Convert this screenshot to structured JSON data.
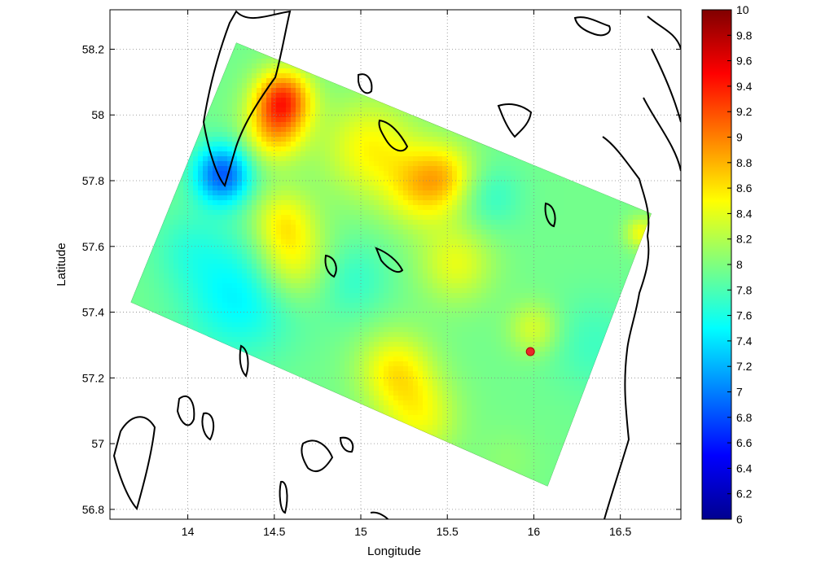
{
  "chart_data": {
    "type": "heatmap",
    "xlabel": "Longitude",
    "ylabel": "Latitude",
    "xlim": [
      13.55,
      16.85
    ],
    "ylim": [
      56.77,
      58.32
    ],
    "x_ticks": [
      14,
      14.5,
      15,
      15.5,
      16,
      16.5
    ],
    "y_ticks": [
      56.8,
      57,
      57.2,
      57.4,
      57.6,
      57.8,
      58,
      58.2
    ],
    "grid": true,
    "colorbar": {
      "range": [
        6,
        10
      ],
      "ticks": [
        "6",
        "6.2",
        "6.4",
        "6.6",
        "6.8",
        "7",
        "7.2",
        "7.4",
        "7.6",
        "7.8",
        "8",
        "8.2",
        "8.4",
        "8.6",
        "8.8",
        "9",
        "9.2",
        "9.4",
        "9.6",
        "9.8",
        "10"
      ],
      "colormap": "jet"
    },
    "domain_corners": [
      [
        14.28,
        58.22
      ],
      [
        13.67,
        57.43
      ],
      [
        16.08,
        56.87
      ],
      [
        16.68,
        57.7
      ]
    ],
    "marker": {
      "lon": 15.98,
      "lat": 57.28,
      "color": "#e8262a"
    },
    "field_base_value": 7.95,
    "blobs": [
      {
        "lon": 14.55,
        "lat": 58.05,
        "value": 1.2,
        "r": 0.09
      },
      {
        "lon": 14.5,
        "lat": 57.95,
        "value": 0.7,
        "r": 0.1
      },
      {
        "lon": 14.2,
        "lat": 57.82,
        "value": -1.1,
        "r": 0.09
      },
      {
        "lon": 14.3,
        "lat": 57.45,
        "value": -0.5,
        "r": 0.18
      },
      {
        "lon": 14.6,
        "lat": 57.55,
        "value": 0.55,
        "r": 0.12
      },
      {
        "lon": 14.55,
        "lat": 57.68,
        "value": 0.5,
        "r": 0.1
      },
      {
        "lon": 15.05,
        "lat": 57.9,
        "value": 0.55,
        "r": 0.15
      },
      {
        "lon": 15.35,
        "lat": 57.78,
        "value": 0.6,
        "r": 0.12
      },
      {
        "lon": 15.5,
        "lat": 57.82,
        "value": 0.45,
        "r": 0.1
      },
      {
        "lon": 15.55,
        "lat": 57.55,
        "value": 0.45,
        "r": 0.12
      },
      {
        "lon": 15.2,
        "lat": 57.22,
        "value": 0.6,
        "r": 0.12
      },
      {
        "lon": 15.35,
        "lat": 57.08,
        "value": 0.45,
        "r": 0.12
      },
      {
        "lon": 14.95,
        "lat": 57.5,
        "value": -0.25,
        "r": 0.12
      },
      {
        "lon": 16.0,
        "lat": 57.35,
        "value": 0.4,
        "r": 0.08
      },
      {
        "lon": 15.75,
        "lat": 57.75,
        "value": -0.25,
        "r": 0.1
      },
      {
        "lon": 16.35,
        "lat": 57.3,
        "value": -0.2,
        "r": 0.15
      },
      {
        "lon": 16.62,
        "lat": 57.64,
        "value": 0.5,
        "r": 0.05
      },
      {
        "lon": 14.0,
        "lat": 57.6,
        "value": -0.2,
        "r": 0.12
      },
      {
        "lon": 15.85,
        "lat": 56.95,
        "value": 0.1,
        "r": 0.1
      }
    ]
  }
}
